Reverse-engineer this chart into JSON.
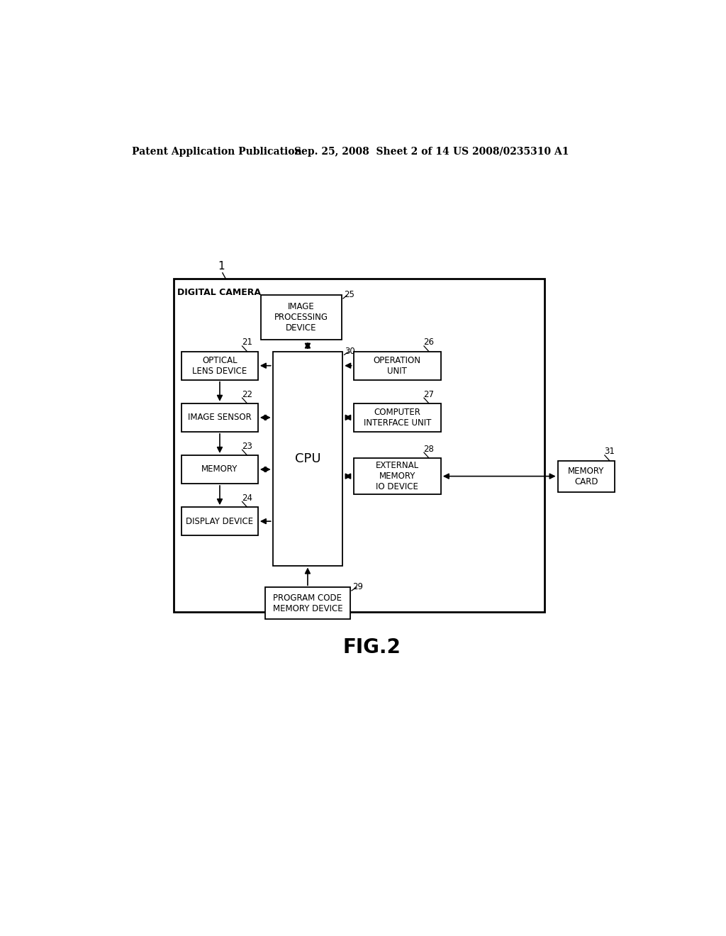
{
  "bg_color": "#ffffff",
  "header_left": "Patent Application Publication",
  "header_mid": "Sep. 25, 2008  Sheet 2 of 14",
  "header_right": "US 2008/0235310 A1",
  "figure_label": "FIG.2",
  "outer_label": "1",
  "outer_box_label": "DIGITAL CAMERA"
}
